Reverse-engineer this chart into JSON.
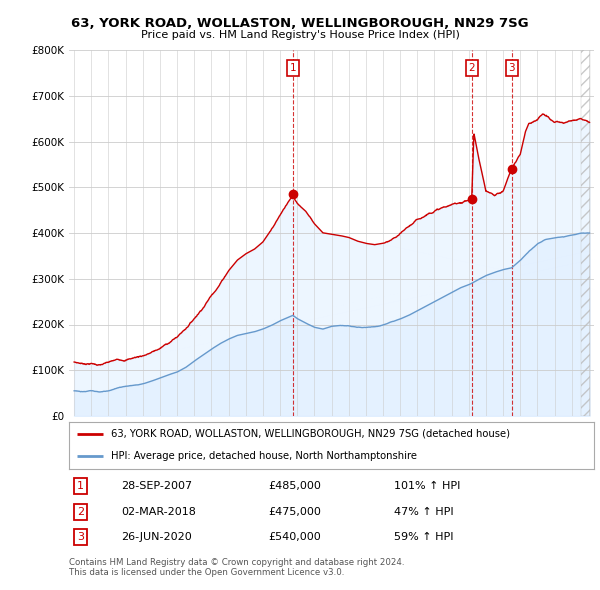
{
  "title1": "63, YORK ROAD, WOLLASTON, WELLINGBOROUGH, NN29 7SG",
  "title2": "Price paid vs. HM Land Registry's House Price Index (HPI)",
  "legend_line1": "63, YORK ROAD, WOLLASTON, WELLINGBOROUGH, NN29 7SG (detached house)",
  "legend_line2": "HPI: Average price, detached house, North Northamptonshire",
  "transactions": [
    {
      "num": 1,
      "date": "28-SEP-2007",
      "price": 485000,
      "hpi_pct": "101%",
      "x_year": 2007.75
    },
    {
      "num": 2,
      "date": "02-MAR-2018",
      "price": 475000,
      "hpi_pct": "47%",
      "x_year": 2018.17
    },
    {
      "num": 3,
      "date": "26-JUN-2020",
      "price": 540000,
      "hpi_pct": "59%",
      "x_year": 2020.5
    }
  ],
  "footnote1": "Contains HM Land Registry data © Crown copyright and database right 2024.",
  "footnote2": "This data is licensed under the Open Government Licence v3.0.",
  "red_color": "#cc0000",
  "blue_color": "#6699cc",
  "fill_color": "#ddeeff",
  "dashed_color": "#cc0000",
  "background_color": "#ffffff",
  "grid_color": "#cccccc",
  "ylim": [
    0,
    800000
  ],
  "xlim_start": 1994.7,
  "xlim_end": 2025.3,
  "hpi_segments": [
    [
      1995.0,
      55000
    ],
    [
      1995.5,
      52000
    ],
    [
      1996.0,
      54000
    ],
    [
      1996.5,
      51000
    ],
    [
      1997.0,
      55000
    ],
    [
      1997.5,
      60000
    ],
    [
      1998.0,
      65000
    ],
    [
      1998.5,
      68000
    ],
    [
      1999.0,
      72000
    ],
    [
      1999.5,
      78000
    ],
    [
      2000.0,
      85000
    ],
    [
      2000.5,
      92000
    ],
    [
      2001.0,
      98000
    ],
    [
      2001.5,
      108000
    ],
    [
      2002.0,
      122000
    ],
    [
      2002.5,
      135000
    ],
    [
      2003.0,
      148000
    ],
    [
      2003.5,
      160000
    ],
    [
      2004.0,
      170000
    ],
    [
      2004.5,
      178000
    ],
    [
      2005.0,
      182000
    ],
    [
      2005.5,
      186000
    ],
    [
      2006.0,
      192000
    ],
    [
      2006.5,
      200000
    ],
    [
      2007.0,
      210000
    ],
    [
      2007.5,
      218000
    ],
    [
      2007.75,
      222000
    ],
    [
      2008.0,
      215000
    ],
    [
      2008.5,
      205000
    ],
    [
      2009.0,
      196000
    ],
    [
      2009.5,
      192000
    ],
    [
      2010.0,
      198000
    ],
    [
      2010.5,
      200000
    ],
    [
      2011.0,
      198000
    ],
    [
      2011.5,
      195000
    ],
    [
      2012.0,
      193000
    ],
    [
      2012.5,
      194000
    ],
    [
      2013.0,
      198000
    ],
    [
      2013.5,
      204000
    ],
    [
      2014.0,
      210000
    ],
    [
      2014.5,
      218000
    ],
    [
      2015.0,
      228000
    ],
    [
      2015.5,
      238000
    ],
    [
      2016.0,
      248000
    ],
    [
      2016.5,
      258000
    ],
    [
      2017.0,
      268000
    ],
    [
      2017.5,
      278000
    ],
    [
      2018.0,
      285000
    ],
    [
      2018.17,
      288000
    ],
    [
      2018.5,
      295000
    ],
    [
      2019.0,
      305000
    ],
    [
      2019.5,
      312000
    ],
    [
      2020.0,
      318000
    ],
    [
      2020.5,
      322000
    ],
    [
      2021.0,
      338000
    ],
    [
      2021.5,
      358000
    ],
    [
      2022.0,
      375000
    ],
    [
      2022.5,
      385000
    ],
    [
      2023.0,
      388000
    ],
    [
      2023.5,
      390000
    ],
    [
      2024.0,
      395000
    ],
    [
      2024.5,
      398000
    ],
    [
      2025.0,
      400000
    ]
  ],
  "red_segments": [
    [
      1995.0,
      118000
    ],
    [
      1995.5,
      115000
    ],
    [
      1996.0,
      116000
    ],
    [
      1996.5,
      113000
    ],
    [
      1997.0,
      117000
    ],
    [
      1997.5,
      121000
    ],
    [
      1998.0,
      123000
    ],
    [
      1998.5,
      128000
    ],
    [
      1999.0,
      133000
    ],
    [
      1999.5,
      140000
    ],
    [
      2000.0,
      148000
    ],
    [
      2000.5,
      160000
    ],
    [
      2001.0,
      173000
    ],
    [
      2001.5,
      192000
    ],
    [
      2002.0,
      215000
    ],
    [
      2002.5,
      240000
    ],
    [
      2003.0,
      268000
    ],
    [
      2003.5,
      295000
    ],
    [
      2004.0,
      325000
    ],
    [
      2004.5,
      348000
    ],
    [
      2005.0,
      362000
    ],
    [
      2005.5,
      372000
    ],
    [
      2006.0,
      388000
    ],
    [
      2006.5,
      415000
    ],
    [
      2007.0,
      445000
    ],
    [
      2007.5,
      475000
    ],
    [
      2007.75,
      485000
    ],
    [
      2008.0,
      472000
    ],
    [
      2008.5,
      455000
    ],
    [
      2009.0,
      428000
    ],
    [
      2009.5,
      408000
    ],
    [
      2010.0,
      405000
    ],
    [
      2010.5,
      402000
    ],
    [
      2011.0,
      398000
    ],
    [
      2011.5,
      390000
    ],
    [
      2012.0,
      385000
    ],
    [
      2012.5,
      382000
    ],
    [
      2013.0,
      385000
    ],
    [
      2013.5,
      390000
    ],
    [
      2014.0,
      400000
    ],
    [
      2014.5,
      415000
    ],
    [
      2015.0,
      428000
    ],
    [
      2015.5,
      440000
    ],
    [
      2016.0,
      452000
    ],
    [
      2016.5,
      458000
    ],
    [
      2017.0,
      462000
    ],
    [
      2017.5,
      468000
    ],
    [
      2018.0,
      474000
    ],
    [
      2018.17,
      475000
    ],
    [
      2018.3,
      620000
    ],
    [
      2018.5,
      580000
    ],
    [
      2019.0,
      490000
    ],
    [
      2019.5,
      480000
    ],
    [
      2020.0,
      490000
    ],
    [
      2020.5,
      540000
    ],
    [
      2021.0,
      570000
    ],
    [
      2021.3,
      620000
    ],
    [
      2021.5,
      640000
    ],
    [
      2022.0,
      650000
    ],
    [
      2022.3,
      660000
    ],
    [
      2022.5,
      655000
    ],
    [
      2023.0,
      640000
    ],
    [
      2023.5,
      635000
    ],
    [
      2024.0,
      640000
    ],
    [
      2024.5,
      648000
    ],
    [
      2025.0,
      642000
    ]
  ]
}
